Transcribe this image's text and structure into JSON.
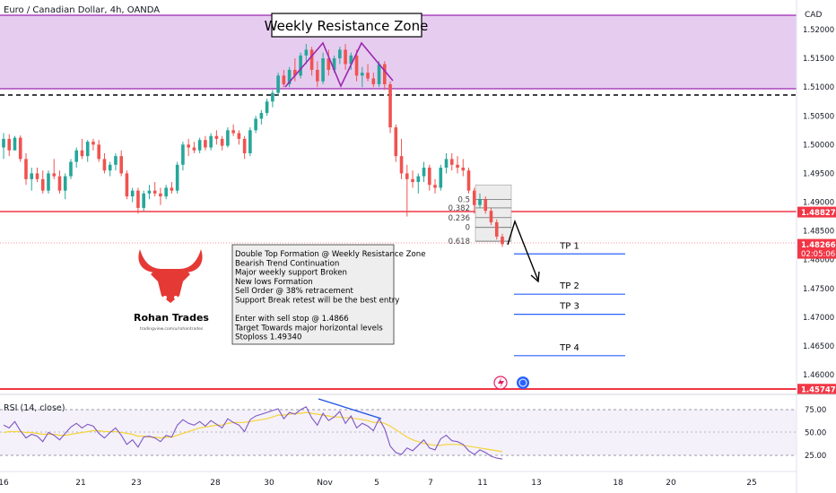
{
  "header": {
    "symbol_title": "Euro / Canadian Dollar, 4h, OANDA",
    "currency": "CAD"
  },
  "annotations": {
    "zone_label": "Weekly Resistance Zone",
    "notes": [
      "Double Top Formation @ Weekly Resistance Zone",
      "Bearish Trend Continuation",
      "Major weekly support Broken",
      "New lows Formation",
      "Sell Order @ 38% retracement",
      "Support Break retest will be the best entry",
      "",
      "Enter with sell stop @ 1.4866",
      "Target Towards major horizontal levels",
      "Stoploss 1.49340"
    ],
    "tp_labels": [
      "TP 1",
      "TP 2",
      "TP 3",
      "TP 4"
    ],
    "fib_labels": [
      "0.618",
      "0.5",
      "0.382",
      "0.236",
      "0"
    ]
  },
  "logo": {
    "name": "Rohan Trades",
    "url_text": "tradingview.com/u/rohantrades"
  },
  "price_axis": {
    "ticks": [
      "1.52000",
      "1.51500",
      "1.51000",
      "1.50500",
      "1.50000",
      "1.49500",
      "1.49000",
      "1.48500",
      "1.48000",
      "1.47500",
      "1.47000",
      "1.46500",
      "1.46000"
    ],
    "badges": [
      {
        "label": "1.48827",
        "color": "#f23645"
      },
      {
        "label": "1.48266",
        "color": "#f23645",
        "sub": "02:05:06"
      },
      {
        "label": "1.45747",
        "color": "#f23645"
      }
    ]
  },
  "time_axis": {
    "ticks": [
      "16",
      "21",
      "23",
      "28",
      "30",
      "Nov",
      "5",
      "7",
      "11",
      "13",
      "18",
      "20",
      "25"
    ]
  },
  "rsi": {
    "title": "RSI (14, close)",
    "ticks": [
      "75.00",
      "50.00",
      "25.00"
    ]
  },
  "colors": {
    "up": "#26a69a",
    "down": "#ef5350",
    "zone_fill": "#e6cdf0",
    "zone_line": "#9c27b0",
    "level": "#f23645",
    "tp_line": "#2962ff",
    "rsi_line": "#7e57c2",
    "rsi_ma": "#f5d33a"
  },
  "chart_data": {
    "type": "candlestick",
    "title": "Euro / Canadian Dollar, 4h, OANDA",
    "yrange": [
      1.4555,
      1.5245
    ],
    "resistance_zone": [
      1.51,
      1.523
    ],
    "levels": {
      "dashed_resistance": 1.5086,
      "broken_support": 1.48827,
      "last_price": 1.48266,
      "major_low": 1.45747
    },
    "take_profits": [
      1.481,
      1.474,
      1.4705,
      1.4633
    ],
    "fib_levels": {
      "0.618": 1.4905,
      "0.5": 1.489,
      "0.382": 1.4873,
      "0.236": 1.4856,
      "0": 1.4832
    },
    "ohlc": [
      [
        1.4995,
        1.502,
        1.4975,
        1.501
      ],
      [
        1.501,
        1.5018,
        1.498,
        1.499
      ],
      [
        1.499,
        1.5015,
        1.499,
        1.5012
      ],
      [
        1.5012,
        1.5016,
        1.497,
        1.4975
      ],
      [
        1.4975,
        1.4985,
        1.493,
        1.494
      ],
      [
        1.494,
        1.496,
        1.492,
        1.495
      ],
      [
        1.495,
        1.496,
        1.4935,
        1.494
      ],
      [
        1.494,
        1.4955,
        1.4915,
        1.492
      ],
      [
        1.492,
        1.4955,
        1.4915,
        1.495
      ],
      [
        1.495,
        1.4975,
        1.494,
        1.4945
      ],
      [
        1.4945,
        1.4955,
        1.4915,
        1.492
      ],
      [
        1.492,
        1.495,
        1.4905,
        1.4945
      ],
      [
        1.4945,
        1.4975,
        1.494,
        1.497
      ],
      [
        1.497,
        1.4995,
        1.496,
        1.499
      ],
      [
        1.499,
        1.501,
        1.4975,
        1.498
      ],
      [
        1.498,
        1.5008,
        1.497,
        1.5005
      ],
      [
        1.5005,
        1.501,
        1.499,
        1.5
      ],
      [
        1.5,
        1.5008,
        1.497,
        1.4975
      ],
      [
        1.4975,
        1.4985,
        1.495,
        1.4955
      ],
      [
        1.4955,
        1.497,
        1.4945,
        1.4965
      ],
      [
        1.4965,
        1.4985,
        1.4955,
        1.498
      ],
      [
        1.498,
        1.499,
        1.4945,
        1.495
      ],
      [
        1.495,
        1.4955,
        1.4905,
        1.491
      ],
      [
        1.491,
        1.4925,
        1.49,
        1.492
      ],
      [
        1.492,
        1.4925,
        1.488,
        1.489
      ],
      [
        1.489,
        1.492,
        1.4885,
        1.4915
      ],
      [
        1.4915,
        1.493,
        1.4905,
        1.492
      ],
      [
        1.492,
        1.4935,
        1.491,
        1.4915
      ],
      [
        1.4915,
        1.4925,
        1.4895,
        1.491
      ],
      [
        1.491,
        1.493,
        1.4905,
        1.4925
      ],
      [
        1.4925,
        1.4935,
        1.4915,
        1.492
      ],
      [
        1.492,
        1.497,
        1.4915,
        1.4965
      ],
      [
        1.4965,
        1.5005,
        1.4955,
        1.5
      ],
      [
        1.5,
        1.501,
        1.498,
        1.4995
      ],
      [
        1.4995,
        1.5005,
        1.4985,
        1.499
      ],
      [
        1.499,
        1.5012,
        1.4985,
        1.5008
      ],
      [
        1.5008,
        1.5015,
        1.499,
        1.4995
      ],
      [
        1.4995,
        1.502,
        1.499,
        1.5015
      ],
      [
        1.5015,
        1.5025,
        1.5,
        1.501
      ],
      [
        1.501,
        1.5015,
        1.499,
        1.4998
      ],
      [
        1.4998,
        1.503,
        1.4995,
        1.5025
      ],
      [
        1.5025,
        1.5035,
        1.5015,
        1.502
      ],
      [
        1.502,
        1.5025,
        1.5,
        1.501
      ],
      [
        1.501,
        1.5015,
        1.4975,
        1.4985
      ],
      [
        1.4985,
        1.503,
        1.498,
        1.5025
      ],
      [
        1.5025,
        1.505,
        1.502,
        1.5045
      ],
      [
        1.5045,
        1.506,
        1.5035,
        1.5055
      ],
      [
        1.5055,
        1.508,
        1.505,
        1.5075
      ],
      [
        1.5075,
        1.5095,
        1.5065,
        1.509
      ],
      [
        1.509,
        1.5125,
        1.5085,
        1.512
      ],
      [
        1.512,
        1.513,
        1.51,
        1.5105
      ],
      [
        1.5105,
        1.5135,
        1.51,
        1.513
      ],
      [
        1.513,
        1.515,
        1.511,
        1.512
      ],
      [
        1.512,
        1.516,
        1.5115,
        1.5155
      ],
      [
        1.5155,
        1.5175,
        1.514,
        1.5165
      ],
      [
        1.5165,
        1.517,
        1.512,
        1.513
      ],
      [
        1.513,
        1.5145,
        1.51,
        1.511
      ],
      [
        1.511,
        1.516,
        1.5105,
        1.515
      ],
      [
        1.515,
        1.5165,
        1.512,
        1.513
      ],
      [
        1.513,
        1.5155,
        1.5125,
        1.515
      ],
      [
        1.515,
        1.517,
        1.514,
        1.5165
      ],
      [
        1.5165,
        1.5175,
        1.513,
        1.514
      ],
      [
        1.514,
        1.516,
        1.513,
        1.5155
      ],
      [
        1.5155,
        1.5165,
        1.511,
        1.512
      ],
      [
        1.512,
        1.5135,
        1.51,
        1.5125
      ],
      [
        1.5125,
        1.514,
        1.511,
        1.5115
      ],
      [
        1.5115,
        1.5125,
        1.51,
        1.5105
      ],
      [
        1.5105,
        1.5145,
        1.51,
        1.514
      ],
      [
        1.514,
        1.5145,
        1.5095,
        1.5105
      ],
      [
        1.5105,
        1.511,
        1.502,
        1.503
      ],
      [
        1.503,
        1.5035,
        1.497,
        1.498
      ],
      [
        1.498,
        1.501,
        1.494,
        1.495
      ],
      [
        1.495,
        1.4965,
        1.4875,
        1.494
      ],
      [
        1.494,
        1.4955,
        1.4925,
        1.4935
      ],
      [
        1.4935,
        1.495,
        1.4915,
        1.4945
      ],
      [
        1.4945,
        1.497,
        1.4935,
        1.496
      ],
      [
        1.496,
        1.4965,
        1.492,
        1.493
      ],
      [
        1.493,
        1.494,
        1.4915,
        1.4925
      ],
      [
        1.4925,
        1.4965,
        1.492,
        1.496
      ],
      [
        1.496,
        1.4985,
        1.495,
        1.4975
      ],
      [
        1.4975,
        1.4985,
        1.4955,
        1.4965
      ],
      [
        1.4965,
        1.498,
        1.495,
        1.496
      ],
      [
        1.496,
        1.4975,
        1.4945,
        1.4955
      ],
      [
        1.4955,
        1.496,
        1.4915,
        1.492
      ],
      [
        1.492,
        1.4925,
        1.488,
        1.4895
      ],
      [
        1.4895,
        1.4915,
        1.489,
        1.4905
      ],
      [
        1.4905,
        1.491,
        1.488,
        1.4885
      ],
      [
        1.4885,
        1.489,
        1.486,
        1.4865
      ],
      [
        1.4865,
        1.487,
        1.4835,
        1.484
      ],
      [
        1.484,
        1.4845,
        1.4822,
        1.4827
      ]
    ],
    "rsi_values": [
      58,
      55,
      62,
      52,
      44,
      48,
      46,
      40,
      50,
      47,
      42,
      49,
      56,
      60,
      55,
      59,
      57,
      49,
      44,
      50,
      55,
      47,
      37,
      42,
      34,
      45,
      46,
      44,
      40,
      47,
      45,
      58,
      64,
      60,
      58,
      62,
      57,
      63,
      59,
      55,
      65,
      61,
      58,
      51,
      64,
      68,
      70,
      72,
      74,
      76,
      65,
      72,
      70,
      75,
      78,
      66,
      58,
      71,
      63,
      67,
      73,
      60,
      68,
      55,
      60,
      57,
      52,
      65,
      54,
      35,
      28,
      26,
      33,
      30,
      36,
      42,
      33,
      31,
      43,
      47,
      41,
      40,
      37,
      30,
      26,
      31,
      28,
      24,
      22,
      21
    ],
    "rsi_ma": [
      50,
      51,
      51,
      51,
      50,
      50,
      49,
      48,
      48,
      48,
      47,
      47,
      48,
      49,
      50,
      51,
      52,
      52,
      51,
      51,
      51,
      50,
      49,
      48,
      46,
      46,
      45,
      45,
      44,
      45,
      45,
      47,
      49,
      51,
      53,
      55,
      56,
      57,
      58,
      58,
      60,
      61,
      61,
      61,
      62,
      63,
      64,
      65,
      67,
      69,
      69,
      70,
      71,
      71,
      72,
      71,
      70,
      69,
      68,
      67,
      67,
      66,
      66,
      65,
      64,
      63,
      61,
      61,
      60,
      57,
      53,
      49,
      45,
      42,
      40,
      38,
      37,
      36,
      36,
      37,
      37,
      37,
      36,
      35,
      34,
      33,
      32,
      31,
      30,
      29
    ]
  }
}
